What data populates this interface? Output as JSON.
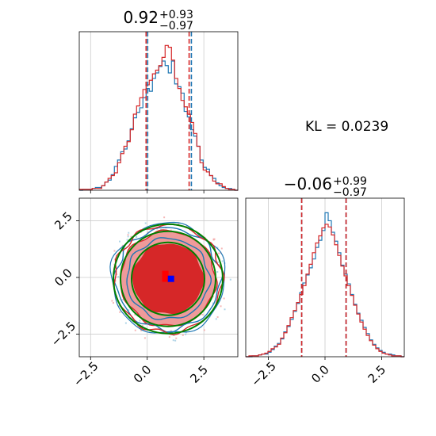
{
  "chart_data": {
    "type": "corner",
    "annotation": "KL = 0.0239",
    "parameters": [
      {
        "title_value": "0.92",
        "title_plus": "+0.93",
        "title_minus": "−0.97",
        "median": 0.92,
        "q16": -0.05,
        "q84": 1.85
      },
      {
        "title_value": "−0.06",
        "title_plus": "+0.99",
        "title_minus": "−0.97",
        "median": -0.06,
        "q16": -1.03,
        "q84": 0.93
      }
    ],
    "series": [
      {
        "name": "",
        "color": "#1f77b4",
        "q16_x": 0.02,
        "q84_x": 1.95,
        "q16_y": -1.03,
        "q84_y": 0.93
      },
      {
        "name": "",
        "color": "#d62728",
        "q16_x": -0.05,
        "q84_x": 1.85,
        "q16_y": -1.03,
        "q84_y": 0.93
      }
    ],
    "reference_contour_color": "#008000",
    "x_range": [
      -3.0,
      4.0
    ],
    "y_range": [
      -3.5,
      3.5
    ],
    "x_ticks": [
      "−2.5",
      "0.0",
      "2.5"
    ],
    "y_ticks": [
      "−2.5",
      "0.0",
      "2.5"
    ],
    "x_tick_values": [
      -2.5,
      0.0,
      2.5
    ],
    "y_tick_values": [
      -2.5,
      0.0,
      2.5
    ],
    "hist1_x": [
      -2.92,
      -2.78,
      -2.64,
      -2.5,
      -2.36,
      -2.22,
      -2.08,
      -1.94,
      -1.8,
      -1.66,
      -1.52,
      -1.38,
      -1.24,
      -1.1,
      -0.96,
      -0.82,
      -0.68,
      -0.54,
      -0.4,
      -0.26,
      -0.12,
      0.02,
      0.16,
      0.3,
      0.44,
      0.58,
      0.72,
      0.86,
      1.0,
      1.14,
      1.28,
      1.42,
      1.56,
      1.7,
      1.84,
      1.98,
      2.12,
      2.26,
      2.4,
      2.54,
      2.68,
      2.82,
      2.96,
      3.1,
      3.24,
      3.38,
      3.52,
      3.66,
      3.8,
      3.94
    ],
    "hist1_blue": [
      0,
      1,
      1,
      1,
      2,
      3,
      3,
      5,
      9,
      11,
      17,
      26,
      33,
      42,
      45,
      54,
      67,
      79,
      85,
      90,
      101,
      111,
      108,
      122,
      128,
      135,
      141,
      136,
      128,
      141,
      116,
      113,
      106,
      86,
      80,
      66,
      59,
      48,
      33,
      25,
      23,
      16,
      13,
      8,
      5,
      3,
      2,
      2,
      1,
      0
    ],
    "hist1_red": [
      1,
      1,
      1,
      1,
      2,
      2,
      2,
      5,
      9,
      13,
      16,
      19,
      30,
      40,
      48,
      53,
      66,
      83,
      92,
      101,
      110,
      115,
      120,
      127,
      131,
      136,
      145,
      158,
      156,
      142,
      122,
      111,
      98,
      91,
      83,
      74,
      62,
      48,
      30,
      22,
      20,
      16,
      10,
      7,
      7,
      4,
      2,
      1,
      1,
      0
    ],
    "hist2_x": [
      -3.43,
      -3.29,
      -3.15,
      -3.01,
      -2.87,
      -2.73,
      -2.59,
      -2.45,
      -2.31,
      -2.17,
      -2.03,
      -1.89,
      -1.75,
      -1.61,
      -1.47,
      -1.33,
      -1.19,
      -1.05,
      -0.91,
      -0.77,
      -0.63,
      -0.49,
      -0.35,
      -0.21,
      -0.07,
      0.07,
      0.21,
      0.35,
      0.49,
      0.63,
      0.77,
      0.91,
      1.05,
      1.19,
      1.33,
      1.47,
      1.61,
      1.75,
      1.89,
      2.03,
      2.17,
      2.31,
      2.45,
      2.59,
      2.73,
      2.87,
      3.01,
      3.15,
      3.29,
      3.43
    ],
    "hist2_blue": [
      0,
      0,
      1,
      1,
      2,
      3,
      3,
      5,
      8,
      12,
      15,
      20,
      28,
      34,
      42,
      51,
      60,
      72,
      83,
      92,
      100,
      110,
      123,
      131,
      142,
      162,
      153,
      140,
      130,
      117,
      103,
      93,
      82,
      70,
      59,
      49,
      41,
      33,
      26,
      19,
      14,
      10,
      7,
      5,
      3,
      3,
      2,
      1,
      1,
      0
    ],
    "hist2_red": [
      0,
      1,
      1,
      1,
      2,
      3,
      4,
      6,
      9,
      11,
      14,
      21,
      27,
      35,
      44,
      52,
      61,
      70,
      80,
      93,
      104,
      117,
      128,
      136,
      145,
      149,
      146,
      137,
      126,
      114,
      102,
      91,
      80,
      69,
      58,
      48,
      39,
      31,
      24,
      18,
      13,
      9,
      6,
      4,
      3,
      2,
      1,
      1,
      1,
      0
    ]
  }
}
